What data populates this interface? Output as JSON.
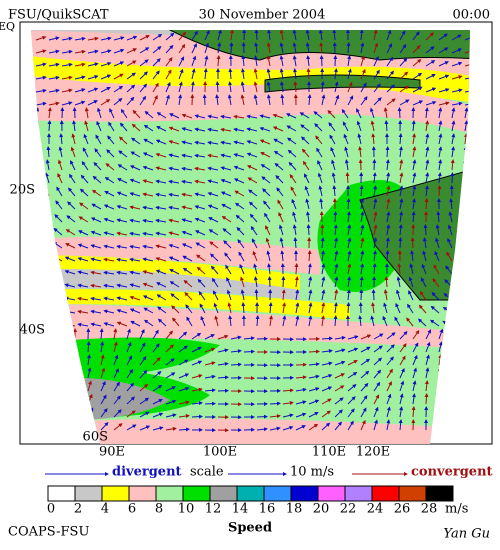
{
  "header": {
    "left": "FSU/QuikSCAT",
    "date": "30 November 2004",
    "time": "00:00"
  },
  "map": {
    "lat_labels": [
      "EQ",
      "20S",
      "40S",
      "60S"
    ],
    "lon_labels": [
      "90E",
      "100E",
      "110E",
      "120E"
    ]
  },
  "legend": {
    "divergent": "divergent",
    "scale": "scale",
    "scale_value": "10 m/s",
    "convergent": "convergent"
  },
  "colorbar": {
    "ticks": [
      0,
      2,
      4,
      6,
      8,
      10,
      12,
      14,
      16,
      18,
      20,
      22,
      24,
      26,
      28
    ],
    "unit": "m/s",
    "title": "Speed",
    "colors": [
      "#ffffff",
      "#c8c8c8",
      "#ffff00",
      "#ffc0c0",
      "#a0f0a0",
      "#00e000",
      "#a0a0a0",
      "#00b0b0",
      "#3090ff",
      "#0000d0",
      "#ff60ff",
      "#b080ff",
      "#ff0000",
      "#d04000",
      "#000000"
    ]
  },
  "footer": {
    "left": "COAPS-FSU",
    "right": "Yan Gu"
  }
}
